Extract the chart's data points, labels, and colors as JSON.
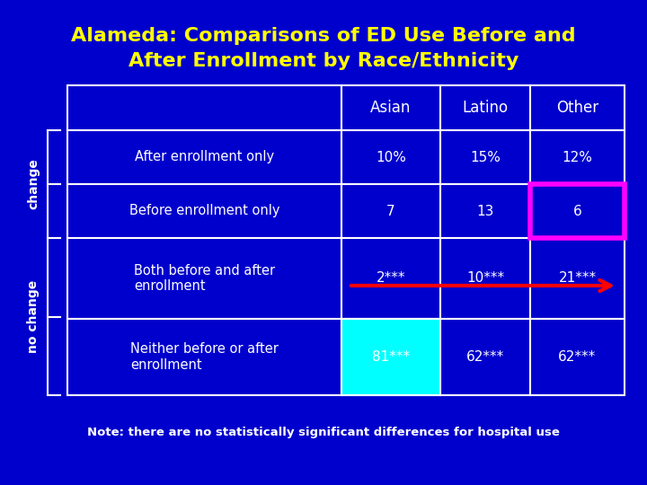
{
  "title_line1": "Alameda: Comparisons of ED Use Before and",
  "title_line2": "After Enrollment by Race/Ethnicity",
  "title_color": "#FFFF00",
  "background_color": "#0000CC",
  "note": "Note: there are no statistically significant differences for hospital use",
  "note_color": "white",
  "col_headers": [
    "",
    "Asian",
    "Latino",
    "Other"
  ],
  "rows": [
    [
      "After enrollment only",
      "10%",
      "15%",
      "12%"
    ],
    [
      "Before enrollment only",
      "7",
      "13",
      "6"
    ],
    [
      "Both before and after\nenrollment",
      "2***",
      "10***",
      "21***"
    ],
    [
      "Neither before or after\nenrollment",
      "81***",
      "62***",
      "62***"
    ]
  ],
  "pink_border_row": 2,
  "pink_border_col": 3,
  "cyan_fill_row": 4,
  "cyan_fill_col": 1,
  "arrow_color": "#FF0000",
  "table_line_color": "white",
  "side_label_change": "change",
  "side_label_no_change": "no change"
}
